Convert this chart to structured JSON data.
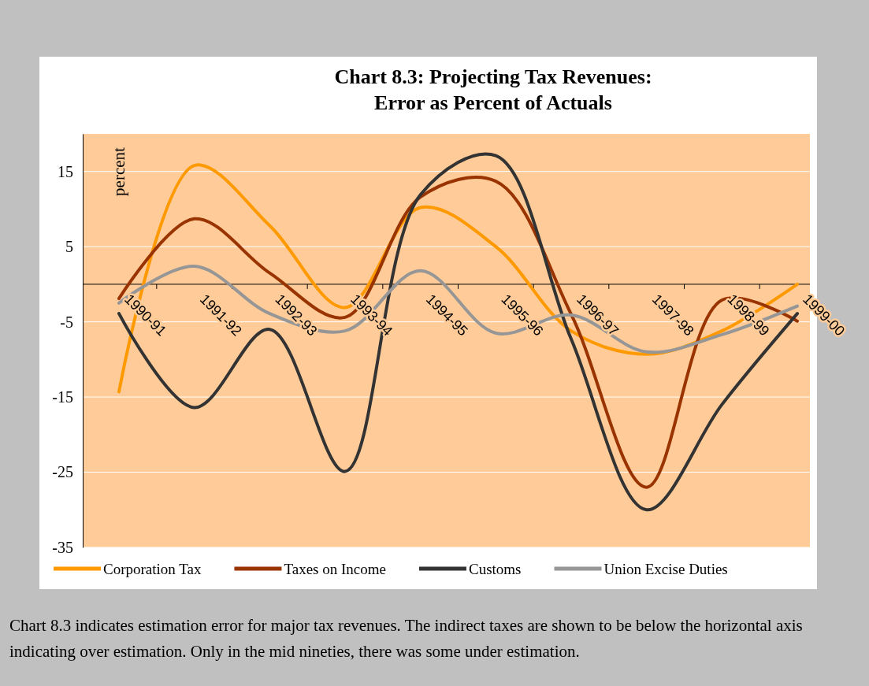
{
  "chart_data": {
    "type": "line",
    "title": "Chart 8.3: Projecting Tax Revenues:\nError as Percent of Actuals",
    "ylabel": "percent",
    "categories": [
      "1990-91",
      "1991-92",
      "1992-93",
      "1993-94",
      "1994-95",
      "1995-96",
      "1996-97",
      "1997-98",
      "1998-99",
      "1999-00"
    ],
    "series": [
      {
        "name": "Corporation Tax",
        "color": "#ff9900",
        "values": [
          -14.3,
          15.8,
          7.8,
          -3.1,
          10.2,
          5,
          -6.2,
          -9.3,
          -6.2,
          0
        ]
      },
      {
        "name": "Taxes on Income",
        "color": "#993300",
        "values": [
          -1.9,
          8.7,
          1.5,
          -4.4,
          11.6,
          13.7,
          -4,
          -27,
          -2.1,
          -4.9
        ]
      },
      {
        "name": "Customs",
        "color": "#333333",
        "values": [
          -3.9,
          -16.4,
          -6,
          -24.9,
          11.9,
          17.1,
          -7.3,
          -30,
          -16,
          -3.9
        ]
      },
      {
        "name": "Union Excise Duties",
        "color": "#969696",
        "values": [
          -2.5,
          2.4,
          -3.9,
          -6.2,
          1.8,
          -6.5,
          -4.1,
          -9,
          -6.7,
          -2.9
        ]
      }
    ],
    "ylim": [
      -35,
      20
    ],
    "yticks": [
      15,
      5,
      -5,
      -15,
      -25,
      -35
    ],
    "grid": "y",
    "legend": "bottom",
    "marker": "none",
    "annotations": [
      "Chart 8.3 indicates estimation error for major tax revenues. The indirect taxes are shown to be below the horizontal axis indicating over estimation. Only in the mid nineties, there was some under estimation."
    ]
  }
}
